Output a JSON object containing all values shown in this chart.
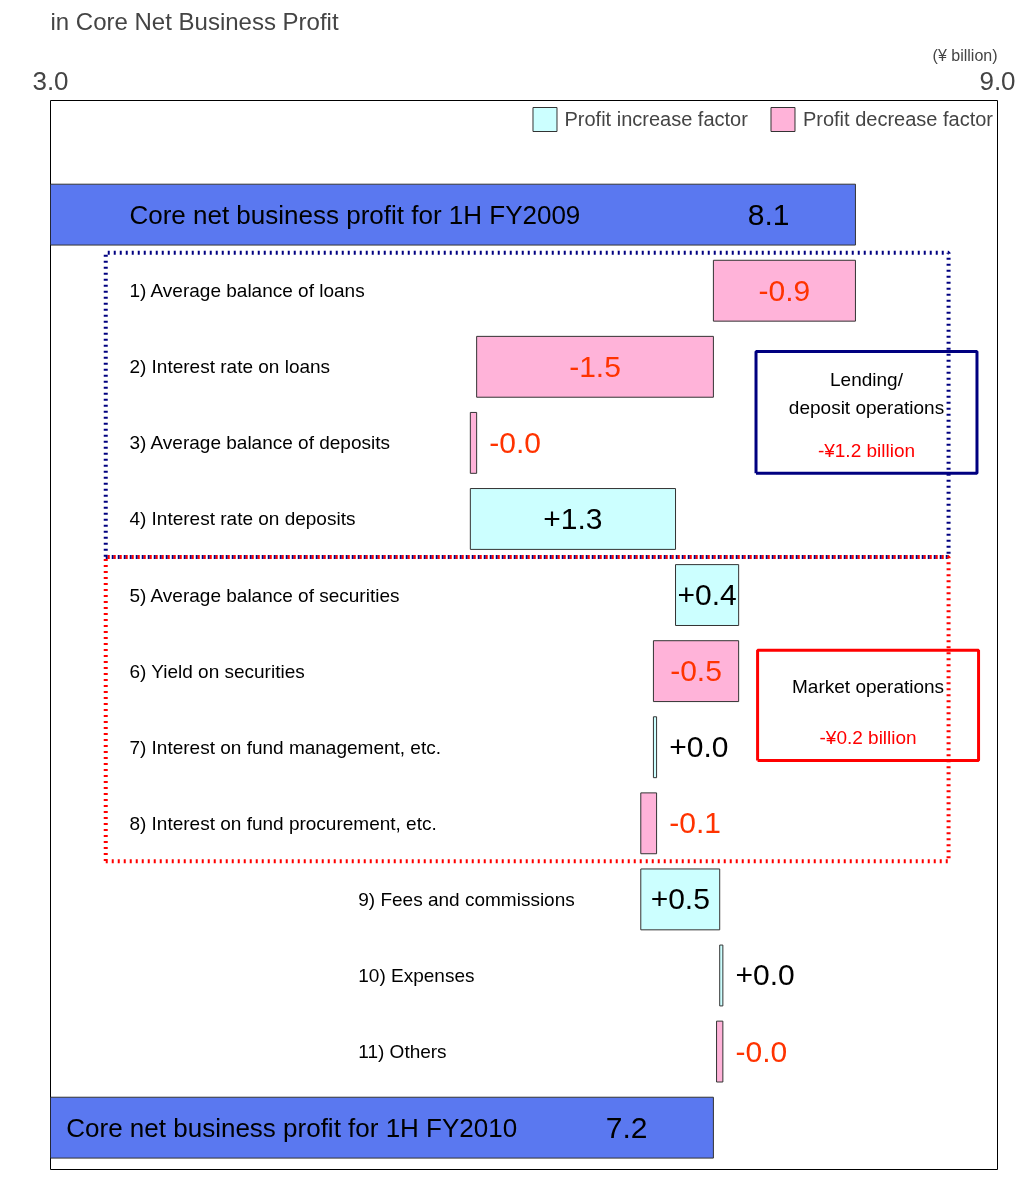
{
  "chart_data": {
    "type": "bar",
    "orientation": "horizontal",
    "title": "in Core Net Business Profit",
    "categories": [
      "Core net business profit for 1H FY2009",
      "1) Average balance of loans",
      "2) Interest rate on loans",
      "3) Average balance of deposits",
      "4) Interest rate on deposits",
      "5) Average balance of securities",
      "6) Yield on securities",
      "7) Interest on fund management, etc.",
      "8) Interest on fund procurement, etc.",
      "9) Fees and commissions",
      "10) Expenses",
      "11) Others",
      "Core net business profit for 1H FY2010"
    ],
    "series": [
      {
        "color": "#5a78f0",
        "values": [
          8.1,
          null,
          null,
          null,
          null,
          null,
          null,
          null,
          null,
          null,
          null,
          null,
          7.2
        ],
        "value_labels": [
          "8.1",
          null,
          null,
          null,
          null,
          null,
          null,
          null,
          null,
          null,
          null,
          null,
          "7.2"
        ]
      },
      {
        "name": "Profit increase factor",
        "color": "#ccffff",
        "base": [
          null,
          null,
          null,
          null,
          5.66,
          6.96,
          null,
          6.82,
          null,
          6.74,
          7.24,
          null,
          null
        ],
        "values": [
          null,
          null,
          null,
          null,
          1.3,
          0.4,
          null,
          0.02,
          null,
          0.5,
          0.02,
          null,
          null
        ],
        "value_labels": [
          null,
          null,
          null,
          null,
          "+1.3",
          "+0.4",
          null,
          "+0.0",
          null,
          "+0.5",
          "+0.0",
          null,
          null
        ]
      },
      {
        "name": "Profit decrease factor",
        "color": "#ffb3d9",
        "base": [
          null,
          8.1,
          7.2,
          5.7,
          null,
          null,
          7.36,
          null,
          6.84,
          null,
          null,
          7.26,
          null
        ],
        "values": [
          null,
          -0.9,
          -1.5,
          -0.04,
          null,
          null,
          -0.54,
          null,
          -0.1,
          null,
          null,
          -0.04,
          null
        ],
        "value_labels": [
          null,
          "-0.9",
          "-1.5",
          "-0.0",
          null,
          null,
          "-0.5",
          null,
          "-0.1",
          null,
          null,
          "-0.0",
          null
        ]
      }
    ],
    "xlim": [
      3.0,
      9.0
    ],
    "xticks": [
      {
        "value": 3.0,
        "label": "3.0"
      },
      {
        "value": 9.0,
        "label": "9.0"
      }
    ],
    "legend": "top right",
    "grid": false,
    "annotations": [
      "(¥ billion)",
      "Lending/\ndeposit operations",
      "-¥1.2 billion",
      "Market operations",
      "-¥0.2 billion"
    ]
  }
}
